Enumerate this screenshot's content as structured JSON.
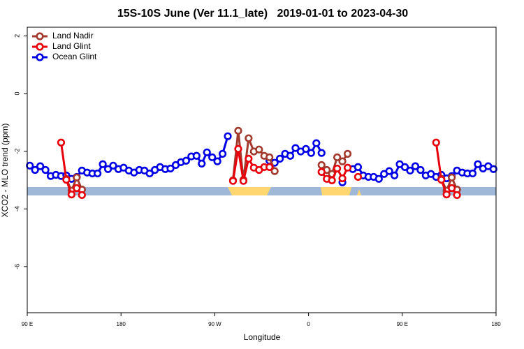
{
  "chart_data": {
    "type": "line",
    "title": "15S-10S June (Ver 11.1_late)   2019-01-01 to 2023-04-30",
    "x_label": "Longitude",
    "y_label": "XCO2 - MLO trend (ppm)",
    "xlim": [
      90,
      540
    ],
    "xticks": [
      {
        "value": 90,
        "label": "90 E"
      },
      180,
      {
        "value": 270,
        "label": "90 W"
      },
      {
        "value": 360,
        "label": "0"
      },
      {
        "value": 450,
        "label": "90 E"
      },
      {
        "value": 540,
        "label": "180"
      }
    ],
    "ylim": [
      -7.6,
      2.3
    ],
    "yticks": [
      2,
      0,
      -2,
      -4,
      -6
    ],
    "legend": "top-left",
    "x": [
      92.5,
      97.5,
      102.5,
      107.5,
      112.5,
      117.5,
      122.5,
      127.5,
      132.5,
      137.5,
      142.5,
      147.5,
      152.5,
      157.5,
      162.5,
      167.5,
      172.5,
      177.5,
      182.5,
      187.5,
      192.5,
      197.5,
      202.5,
      207.5,
      212.5,
      217.5,
      222.5,
      227.5,
      232.5,
      237.5,
      242.5,
      247.5,
      252.5,
      257.5,
      262.5,
      267.5,
      272.5,
      277.5,
      282.5,
      287.5,
      292.5,
      297.5,
      302.5,
      307.5,
      312.5,
      317.5,
      322.5,
      327.5,
      332.5,
      337.5,
      342.5,
      347.5,
      352.5,
      357.5,
      362.5,
      367.5,
      372.5,
      377.5,
      382.5,
      387.5,
      392.5,
      397.5,
      402.5,
      407.5,
      412.5,
      417.5,
      422.5,
      427.5,
      432.5,
      437.5,
      442.5,
      447.5,
      452.5,
      457.5,
      462.5,
      467.5,
      472.5,
      477.5,
      482.5,
      487.5,
      492.5,
      497.5,
      502.5,
      507.5,
      512.5,
      517.5,
      522.5,
      527.5,
      532.5,
      537.5
    ],
    "series": [
      {
        "name": "Land Nadir",
        "color": "#a33a2e",
        "values": [
          null,
          null,
          null,
          null,
          null,
          null,
          null,
          -2.96,
          -3.37,
          -2.91,
          -3.33,
          null,
          null,
          null,
          null,
          null,
          null,
          null,
          null,
          null,
          null,
          null,
          null,
          null,
          null,
          null,
          null,
          null,
          null,
          null,
          null,
          null,
          null,
          null,
          null,
          null,
          null,
          null,
          null,
          -3.01,
          -1.29,
          -2.99,
          -1.55,
          -2.01,
          -1.94,
          -2.16,
          -2.21,
          -2.69,
          null,
          null,
          null,
          null,
          null,
          null,
          null,
          null,
          -2.48,
          -2.65,
          -2.79,
          -2.21,
          -2.35,
          -2.09,
          null,
          null,
          null,
          null,
          null,
          null,
          null,
          null,
          null,
          null,
          null,
          null,
          null,
          null,
          null,
          null,
          null,
          -2.96,
          -3.37,
          -2.91,
          -3.33,
          null,
          null,
          null,
          null,
          null,
          null,
          null
        ]
      },
      {
        "name": "Land Glint",
        "color": "#e8000b",
        "values": [
          null,
          null,
          null,
          null,
          null,
          null,
          -1.7,
          -2.99,
          -3.5,
          -3.28,
          -3.52,
          null,
          null,
          null,
          null,
          null,
          null,
          null,
          null,
          null,
          null,
          null,
          null,
          null,
          null,
          null,
          null,
          null,
          null,
          null,
          null,
          null,
          null,
          null,
          null,
          null,
          null,
          null,
          null,
          -3.03,
          -1.92,
          -3.03,
          -2.26,
          -2.57,
          -2.65,
          -2.55,
          -2.55,
          null,
          null,
          null,
          null,
          null,
          null,
          null,
          null,
          null,
          -2.72,
          -2.96,
          -3.01,
          -2.6,
          -2.94,
          -2.57,
          null,
          -2.89,
          null,
          null,
          null,
          null,
          null,
          null,
          null,
          null,
          null,
          null,
          null,
          null,
          null,
          null,
          -1.7,
          -2.99,
          -3.5,
          -3.28,
          -3.52,
          null,
          null,
          null,
          null,
          null,
          null,
          null
        ]
      },
      {
        "name": "Ocean Glint",
        "color": "#0000e6",
        "values": [
          -2.5,
          -2.65,
          -2.52,
          -2.65,
          -2.86,
          -2.82,
          -2.86,
          -2.84,
          -2.96,
          -2.89,
          -2.67,
          -2.74,
          -2.77,
          -2.77,
          -2.45,
          -2.62,
          -2.5,
          -2.62,
          -2.57,
          -2.67,
          -2.74,
          -2.65,
          -2.67,
          -2.77,
          -2.65,
          -2.55,
          -2.62,
          -2.6,
          -2.48,
          -2.38,
          -2.33,
          -2.18,
          -2.16,
          -2.43,
          -2.04,
          -2.21,
          -2.35,
          -2.09,
          -1.48,
          null,
          null,
          null,
          null,
          null,
          null,
          null,
          -2.33,
          -2.4,
          -2.26,
          -2.09,
          -2.16,
          -1.89,
          -2.01,
          -1.92,
          -2.06,
          -1.72,
          -2.06,
          null,
          null,
          null,
          -3.08,
          null,
          -2.62,
          -2.55,
          -2.84,
          -2.89,
          -2.89,
          -2.96,
          -2.79,
          -2.69,
          -2.84,
          -2.45,
          -2.55,
          -2.67,
          -2.52,
          -2.65,
          -2.84,
          -2.79,
          -2.89,
          -2.82,
          -2.94,
          -2.86,
          -2.67,
          -2.74,
          -2.77,
          -2.77,
          -2.45,
          -2.6,
          -2.52,
          -2.62
        ]
      }
    ]
  }
}
